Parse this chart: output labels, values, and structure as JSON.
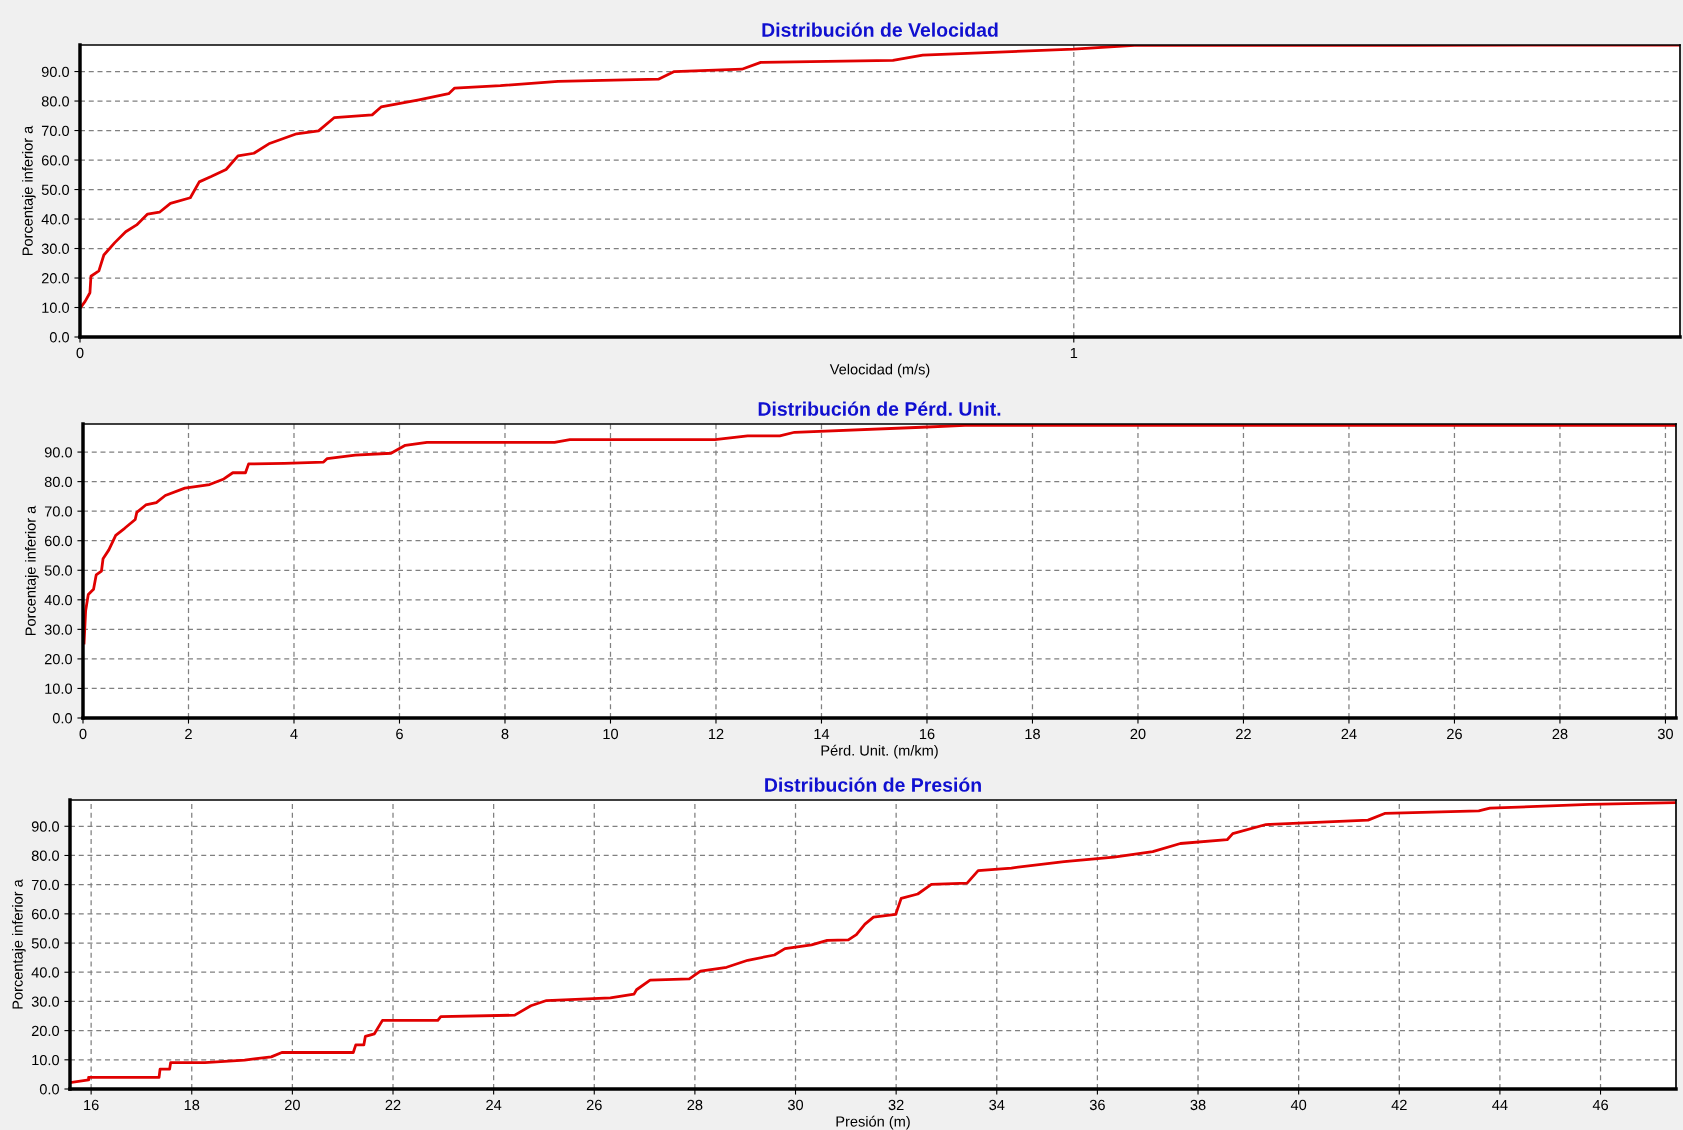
{
  "chart_data": [
    {
      "type": "line",
      "title": "Distribución de Velocidad",
      "xlabel": "Velocidad (m/s)",
      "ylabel": "Porcentaje inferior a",
      "xlim": [
        0,
        1.61
      ],
      "xticks": [
        0,
        1
      ],
      "ylim": [
        0,
        99
      ],
      "yticks": [
        {
          "value": 0,
          "label": "0.0"
        },
        {
          "value": 10,
          "label": "10.0"
        },
        {
          "value": 20,
          "label": "20.0"
        },
        {
          "value": 30,
          "label": "30.0"
        },
        {
          "value": 40,
          "label": "40.0"
        },
        {
          "value": 50,
          "label": "50.0"
        },
        {
          "value": 60,
          "label": "60.0"
        },
        {
          "value": 70,
          "label": "70.0"
        },
        {
          "value": 80,
          "label": "80.0"
        },
        {
          "value": 90,
          "label": "90.0"
        }
      ],
      "grid": true,
      "line_style": "solid",
      "marker": "none",
      "x": [
        0,
        0.005,
        0.01,
        0.011,
        0.019,
        0.024,
        0.035,
        0.046,
        0.057,
        0.068,
        0.08,
        0.091,
        0.111,
        0.12,
        0.132,
        0.147,
        0.159,
        0.175,
        0.19,
        0.218,
        0.24,
        0.256,
        0.294,
        0.303,
        0.341,
        0.371,
        0.377,
        0.423,
        0.481,
        0.582,
        0.598,
        0.666,
        0.685,
        0.818,
        0.848,
        1.0,
        1.061,
        1.334,
        1.61
      ],
      "series": [
        {
          "color": "#e00000",
          "values": [
            9.7,
            12,
            15,
            20.6,
            22.4,
            27.8,
            32,
            35.7,
            38,
            41.7,
            42.3,
            45.3,
            47.2,
            52.6,
            54.4,
            56.8,
            61.4,
            62.3,
            65.5,
            68.9,
            69.9,
            74.4,
            75.3,
            78,
            80.4,
            82.5,
            84.4,
            85.2,
            86.7,
            87.4,
            90.0,
            90.8,
            93.1,
            93.8,
            95.6,
            97.6,
            98.9,
            98.9,
            99
          ]
        }
      ]
    },
    {
      "type": "line",
      "title": "Distribución de Pérd. Unit.",
      "xlabel": "Pérd. Unit. (m/km)",
      "ylabel": "Porcentaje inferior a",
      "xlim": [
        0,
        30.2
      ],
      "xticks": [
        0,
        2,
        4,
        6,
        8,
        10,
        12,
        14,
        16,
        18,
        20,
        22,
        24,
        26,
        28,
        30
      ],
      "ylim": [
        0,
        99.5
      ],
      "yticks": [
        {
          "value": 0,
          "label": "0.0"
        },
        {
          "value": 10,
          "label": "10.0"
        },
        {
          "value": 20,
          "label": "20.0"
        },
        {
          "value": 30,
          "label": "30.0"
        },
        {
          "value": 40,
          "label": "40.0"
        },
        {
          "value": 50,
          "label": "50.0"
        },
        {
          "value": 60,
          "label": "60.0"
        },
        {
          "value": 70,
          "label": "70.0"
        },
        {
          "value": 80,
          "label": "80.0"
        },
        {
          "value": 90,
          "label": "90.0"
        }
      ],
      "grid": true,
      "line_style": "solid",
      "marker": "none",
      "x": [
        0.02,
        0.05,
        0.1,
        0.2,
        0.25,
        0.35,
        0.38,
        0.49,
        0.62,
        0.79,
        0.99,
        1.02,
        1.19,
        1.39,
        1.56,
        1.93,
        2.4,
        2.67,
        2.84,
        3.08,
        3.14,
        3.82,
        4.56,
        4.63,
        5.16,
        5.84,
        6.11,
        6.52,
        8.94,
        9.23,
        11.98,
        12.6,
        13.21,
        13.49,
        15.9,
        16.72,
        23.4,
        30.2
      ],
      "series": [
        {
          "color": "#e00000",
          "values": [
            25.4,
            36.3,
            41.8,
            43.6,
            48.4,
            49.7,
            53.9,
            56.9,
            61.8,
            64.2,
            67.2,
            69.6,
            72.1,
            72.9,
            75.3,
            77.8,
            79.0,
            80.9,
            83.0,
            83.0,
            86.0,
            86.2,
            86.6,
            87.8,
            89.0,
            89.6,
            92.3,
            93.3,
            93.3,
            94.2,
            94.2,
            95.5,
            95.5,
            96.7,
            98.4,
            99,
            99,
            99
          ]
        }
      ]
    },
    {
      "type": "line",
      "title": "Distribución de Presión",
      "xlabel": "Presión (m)",
      "ylabel": "Porcentaje inferior a",
      "xlim": [
        15.58,
        47.5
      ],
      "xticks": [
        16,
        18,
        20,
        22,
        24,
        26,
        28,
        30,
        32,
        34,
        36,
        38,
        40,
        42,
        44,
        46
      ],
      "ylim": [
        0,
        99
      ],
      "yticks": [
        {
          "value": 0,
          "label": "0.0"
        },
        {
          "value": 10,
          "label": "10.0"
        },
        {
          "value": 20,
          "label": "20.0"
        },
        {
          "value": 30,
          "label": "30.0"
        },
        {
          "value": 40,
          "label": "40.0"
        },
        {
          "value": 50,
          "label": "50.0"
        },
        {
          "value": 60,
          "label": "60.0"
        },
        {
          "value": 70,
          "label": "70.0"
        },
        {
          "value": 80,
          "label": "80.0"
        },
        {
          "value": 90,
          "label": "90.0"
        }
      ],
      "grid": true,
      "line_style": "solid",
      "marker": "none",
      "x": [
        15.58,
        15.95,
        15.95,
        17.35,
        17.37,
        17.56,
        17.58,
        18.26,
        19.05,
        19.58,
        19.79,
        21.21,
        21.26,
        21.42,
        21.45,
        21.63,
        21.79,
        22.89,
        22.95,
        24.42,
        24.74,
        25.05,
        26.32,
        26.79,
        26.84,
        27.11,
        27.89,
        28.11,
        28.63,
        29.05,
        29.58,
        29.79,
        30.32,
        30.63,
        31.05,
        31.21,
        31.38,
        31.55,
        31.99,
        32.1,
        32.43,
        32.7,
        33.41,
        33.63,
        34.29,
        35.34,
        36.33,
        37.1,
        37.65,
        38.58,
        38.69,
        39.35,
        41.38,
        41.71,
        43.58,
        43.8,
        45.78,
        47.48
      ],
      "series": [
        {
          "color": "#e00000",
          "values": [
            2.2,
            3.1,
            4.0,
            4.0,
            6.8,
            6.8,
            9.0,
            9.0,
            9.9,
            11.0,
            12.5,
            12.5,
            15.1,
            15.1,
            18.0,
            18.9,
            23.5,
            23.5,
            24.8,
            25.3,
            28.5,
            30.3,
            31.2,
            32.5,
            34.0,
            37.3,
            37.7,
            40.4,
            41.7,
            44.1,
            45.9,
            48.1,
            49.4,
            50.9,
            51.1,
            52.9,
            56.5,
            58.9,
            59.8,
            65.3,
            66.8,
            70.1,
            70.5,
            74.8,
            75.7,
            77.9,
            79.4,
            81.3,
            84.1,
            85.4,
            87.5,
            90.6,
            92.1,
            94.4,
            95.3,
            96.2,
            97.5,
            98.1
          ]
        }
      ]
    }
  ]
}
